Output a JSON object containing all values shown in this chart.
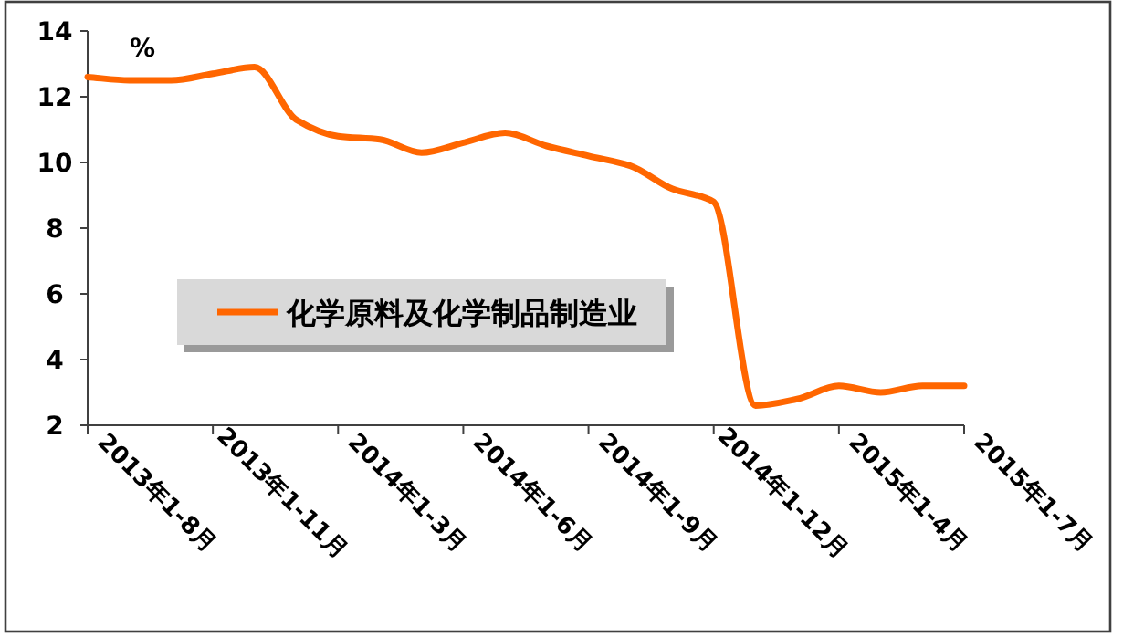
{
  "chart_data": {
    "type": "line",
    "ylabel": "%",
    "categories": [
      "2013年1-8月",
      null,
      null,
      "2013年1-11月",
      null,
      null,
      "2014年1-3月",
      null,
      null,
      "2014年1-6月",
      null,
      null,
      "2014年1-9月",
      null,
      null,
      "2014年1-12月",
      null,
      null,
      "2015年1-4月",
      null,
      null,
      "2015年1-7月"
    ],
    "series": [
      {
        "name": "化学原料及化学制品制造业",
        "color": "#ff6600",
        "values": [
          12.6,
          12.5,
          12.5,
          12.7,
          12.9,
          11.3,
          10.8,
          10.7,
          10.3,
          10.6,
          10.9,
          10.5,
          10.2,
          9.9,
          9.2,
          8.8,
          2.6,
          2.8,
          3.2,
          3.0,
          3.2,
          3.2
        ]
      }
    ],
    "ylim": [
      2,
      14
    ],
    "yticks": [
      2,
      4,
      6,
      8,
      10,
      12,
      14
    ],
    "legend": "left"
  }
}
